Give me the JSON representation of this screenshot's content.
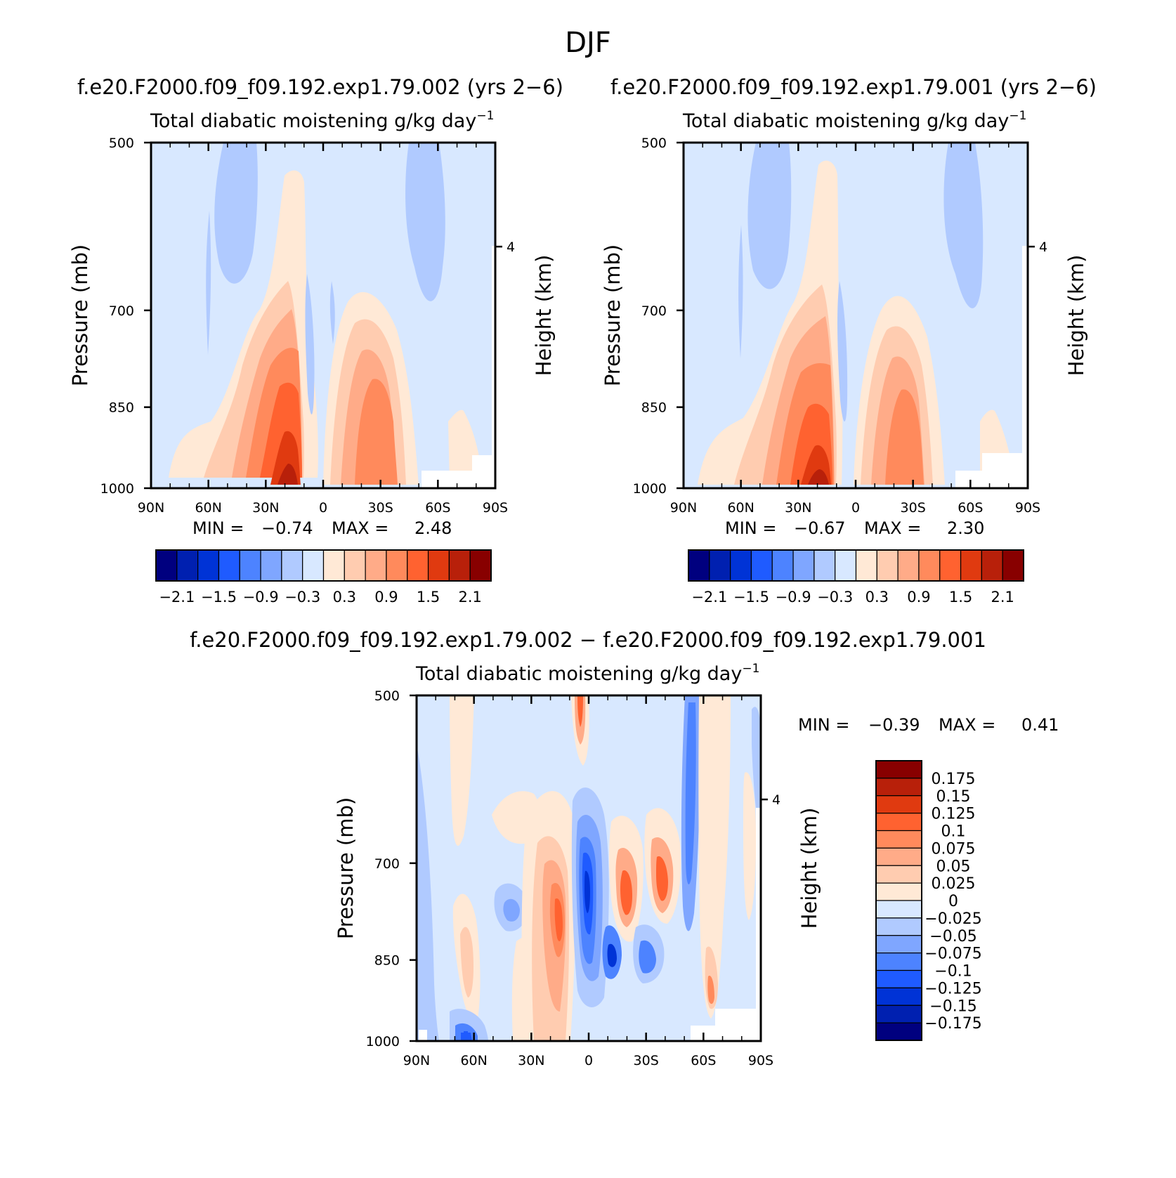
{
  "figure_title": "DJF",
  "chart_data": [
    {
      "type": "heatmap",
      "title": "f.e20.F2000.f09_f09.192.exp1.79.002 (yrs 2−6)",
      "subtitle": "Total diabatic moistening",
      "units": "g/kg day",
      "units_exponent": "−1",
      "ylabel": "Pressure (mb)",
      "y2label": "Height (km)",
      "yticks": [
        "500",
        "700",
        "850",
        "1000"
      ],
      "y2ticks": [
        "4"
      ],
      "xticks": [
        "90N",
        "60N",
        "30N",
        "0",
        "30S",
        "60S",
        "90S"
      ],
      "ylim": [
        1000,
        500
      ],
      "xlim": [
        90,
        -90
      ],
      "stats": {
        "min_label": "MIN =",
        "min": "−0.74",
        "max_label": "MAX =",
        "max": "2.48"
      },
      "colorbar": {
        "orientation": "horizontal",
        "colors": [
          "#00007f",
          "#0020b0",
          "#0033d6",
          "#1f5bff",
          "#4d83ff",
          "#7fa6ff",
          "#b0caff",
          "#d8e8ff",
          "#ffe9d6",
          "#ffccb0",
          "#ffab88",
          "#ff8a5c",
          "#ff6230",
          "#e03a10",
          "#b8200a",
          "#880000"
        ],
        "labels": [
          "−2.1",
          "−1.5",
          "−0.9",
          "−0.3",
          "0.3",
          "0.9",
          "1.5",
          "2.1"
        ]
      }
    },
    {
      "type": "heatmap",
      "title": "f.e20.F2000.f09_f09.192.exp1.79.001 (yrs 2−6)",
      "subtitle": "Total diabatic moistening",
      "units": "g/kg day",
      "units_exponent": "−1",
      "ylabel": "Pressure (mb)",
      "y2label": "Height (km)",
      "yticks": [
        "500",
        "700",
        "850",
        "1000"
      ],
      "y2ticks": [
        "4"
      ],
      "xticks": [
        "90N",
        "60N",
        "30N",
        "0",
        "30S",
        "60S",
        "90S"
      ],
      "ylim": [
        1000,
        500
      ],
      "xlim": [
        90,
        -90
      ],
      "stats": {
        "min_label": "MIN =",
        "min": "−0.67",
        "max_label": "MAX =",
        "max": "2.30"
      },
      "colorbar": {
        "orientation": "horizontal",
        "colors": [
          "#00007f",
          "#0020b0",
          "#0033d6",
          "#1f5bff",
          "#4d83ff",
          "#7fa6ff",
          "#b0caff",
          "#d8e8ff",
          "#ffe9d6",
          "#ffccb0",
          "#ffab88",
          "#ff8a5c",
          "#ff6230",
          "#e03a10",
          "#b8200a",
          "#880000"
        ],
        "labels": [
          "−2.1",
          "−1.5",
          "−0.9",
          "−0.3",
          "0.3",
          "0.9",
          "1.5",
          "2.1"
        ]
      }
    },
    {
      "type": "heatmap",
      "title": "f.e20.F2000.f09_f09.192.exp1.79.002 − f.e20.F2000.f09_f09.192.exp1.79.001",
      "subtitle": "Total diabatic moistening",
      "units": "g/kg day",
      "units_exponent": "−1",
      "ylabel": "Pressure (mb)",
      "y2label": "Height (km)",
      "yticks": [
        "500",
        "700",
        "850",
        "1000"
      ],
      "y2ticks": [
        "4"
      ],
      "xticks": [
        "90N",
        "60N",
        "30N",
        "0",
        "30S",
        "60S",
        "90S"
      ],
      "ylim": [
        1000,
        500
      ],
      "xlim": [
        90,
        -90
      ],
      "stats": {
        "min_label": "MIN =",
        "min": "−0.39",
        "max_label": "MAX =",
        "max": "0.41"
      },
      "colorbar": {
        "orientation": "vertical",
        "colors": [
          "#880000",
          "#b8200a",
          "#e03a10",
          "#ff6230",
          "#ff8a5c",
          "#ffab88",
          "#ffccb0",
          "#ffe9d6",
          "#d8e8ff",
          "#b0caff",
          "#7fa6ff",
          "#4d83ff",
          "#1f5bff",
          "#0033d6",
          "#0020b0",
          "#00007f"
        ],
        "labels": [
          "0.175",
          "0.15",
          "0.125",
          "0.1",
          "0.075",
          "0.05",
          "0.025",
          "0",
          "−0.025",
          "−0.05",
          "−0.075",
          "−0.1",
          "−0.125",
          "−0.15",
          "−0.175"
        ]
      }
    }
  ]
}
